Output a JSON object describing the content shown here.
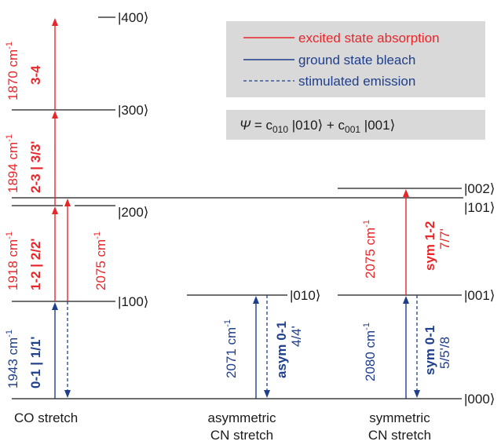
{
  "legend": {
    "items": [
      {
        "label": "excited state absorption",
        "color": "#e8262a",
        "style": "solid"
      },
      {
        "label": "ground state bleach",
        "color": "#1f3f8c",
        "style": "solid"
      },
      {
        "label": "stimulated emission",
        "color": "#1f3f8c",
        "style": "dashed"
      }
    ]
  },
  "equation": {
    "psi": "Ψ",
    "eq": " = c",
    "sub1": "010",
    "ket1": " |010⟩ + c",
    "sub2": "001",
    "ket2": " |001⟩"
  },
  "levels": {
    "co": [
      "|000⟩",
      "|100⟩",
      "|200⟩",
      "|300⟩",
      "|400⟩"
    ],
    "asym": "|010⟩",
    "sym": [
      "|001⟩",
      "|101⟩",
      "|002⟩"
    ],
    "ground": "|000⟩"
  },
  "co_labels": {
    "t34_freq": "1870 cm",
    "t34_name": "3-4",
    "t23_freq": "1894 cm",
    "t23_name": "2-3 | 3/3'",
    "t12_freq": "1918 cm",
    "t12_name": "1-2 | 2/2'",
    "t12b_freq": "2075 cm",
    "t01_freq": "1943 cm",
    "t01_name": "0-1 | 1/1'",
    "exp": "-1"
  },
  "asym_labels": {
    "freq": "2071 cm",
    "name": "asym 0-1",
    "sub": "4/4'",
    "exp": "-1"
  },
  "sym_labels": {
    "t12_freq": "2075 cm",
    "t12_name": "sym 1-2",
    "t12_sub": "7/7'",
    "t01_freq": "2080 cm",
    "t01_name": "sym 0-1",
    "t01_sub": "5/5'/8",
    "exp": "-1"
  },
  "captions": {
    "co": "CO stretch",
    "asym_1": "asymmetric",
    "asym_2": "CN stretch",
    "sym_1": "symmetric",
    "sym_2": "CN stretch"
  },
  "colors": {
    "esa": "#e8262a",
    "gsb": "#1f3f8c",
    "legend_bg": "#d9d9d9"
  }
}
